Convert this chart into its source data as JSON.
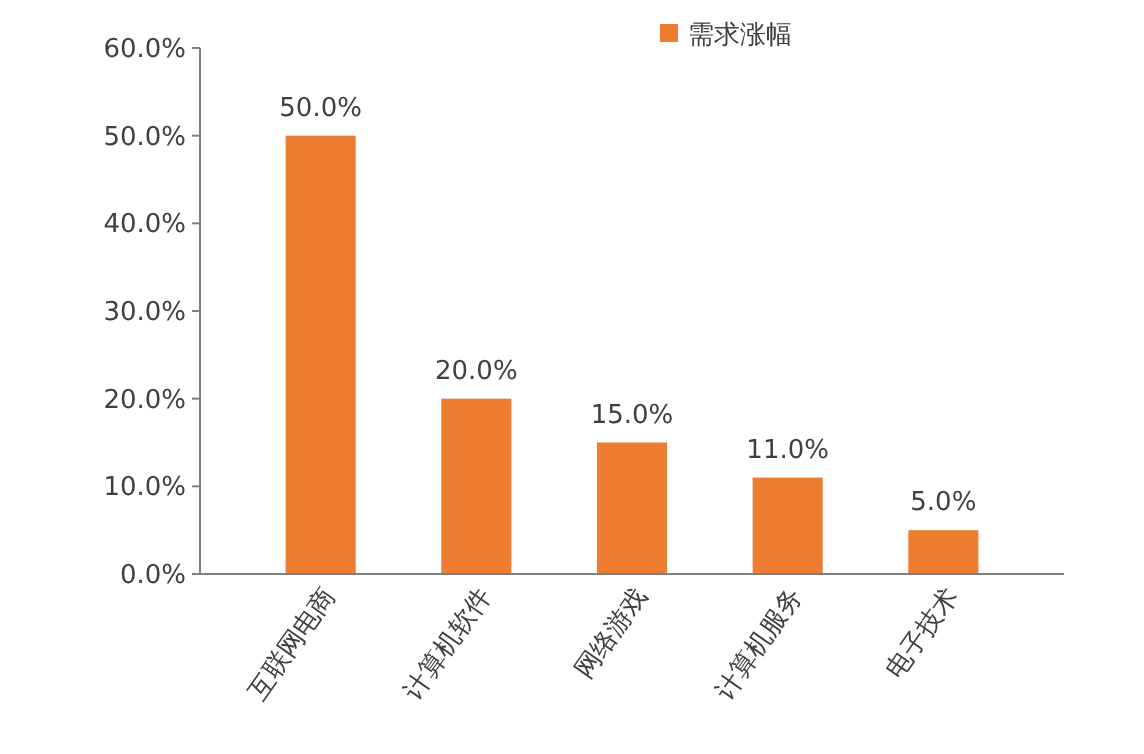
{
  "chart_data": {
    "type": "bar",
    "categories": [
      "互联网电商",
      "计算机软件",
      "网络游戏",
      "计算机服务",
      "电子技术"
    ],
    "series": [
      {
        "name": "需求涨幅",
        "color": "#ed7d31",
        "values": [
          50,
          20,
          15,
          11,
          5
        ]
      }
    ],
    "value_labels": [
      "50.0%",
      "20.0%",
      "15.0%",
      "11.0%",
      "5.0%"
    ],
    "ylim": [
      0,
      60
    ],
    "yticks": [
      {
        "value": 0,
        "label": "0.0%"
      },
      {
        "value": 10,
        "label": "10.0%"
      },
      {
        "value": 20,
        "label": "20.0%"
      },
      {
        "value": 30,
        "label": "30.0%"
      },
      {
        "value": 40,
        "label": "40.0%"
      },
      {
        "value": 50,
        "label": "50.0%"
      },
      {
        "value": 60,
        "label": "60.0%"
      }
    ],
    "legend": "top right",
    "grid": false
  }
}
